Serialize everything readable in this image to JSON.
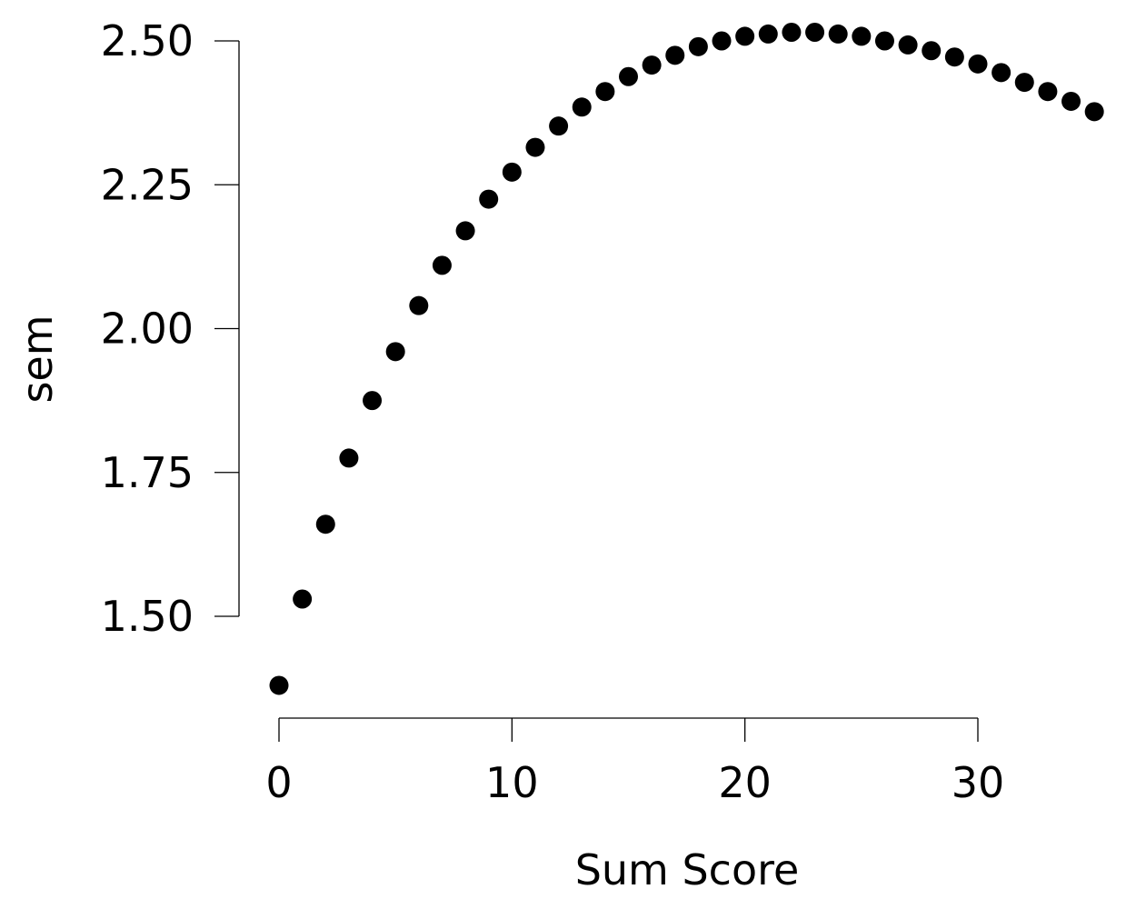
{
  "chart_data": {
    "type": "scatter",
    "title": "",
    "xlabel": "Sum Score",
    "ylabel": "sem",
    "xlim": [
      0,
      30
    ],
    "ylim": [
      1.5,
      2.5
    ],
    "x_ticks": [
      0,
      10,
      20,
      30
    ],
    "x_tick_labels": [
      "0",
      "10",
      "20",
      "30"
    ],
    "y_ticks": [
      1.5,
      1.75,
      2.0,
      2.25,
      2.5
    ],
    "y_tick_labels": [
      "1.50",
      "1.75",
      "2.00",
      "2.25",
      "2.50"
    ],
    "grid": false,
    "legend": "none",
    "point_color": "#000000",
    "series": [
      {
        "x": [
          0,
          1,
          2,
          3,
          4,
          5,
          6,
          7,
          8,
          9,
          10,
          11,
          12,
          13,
          14,
          15,
          16,
          17,
          18,
          19,
          20,
          21,
          22,
          23,
          24,
          25,
          26,
          27,
          28,
          29,
          30,
          31,
          32,
          33,
          34,
          35
        ],
        "y": [
          1.38,
          1.53,
          1.66,
          1.775,
          1.875,
          1.96,
          2.04,
          2.11,
          2.17,
          2.225,
          2.272,
          2.315,
          2.352,
          2.385,
          2.412,
          2.438,
          2.458,
          2.475,
          2.49,
          2.5,
          2.508,
          2.512,
          2.515,
          2.515,
          2.512,
          2.508,
          2.5,
          2.493,
          2.483,
          2.472,
          2.46,
          2.445,
          2.428,
          2.412,
          2.395,
          2.377
        ]
      }
    ]
  }
}
